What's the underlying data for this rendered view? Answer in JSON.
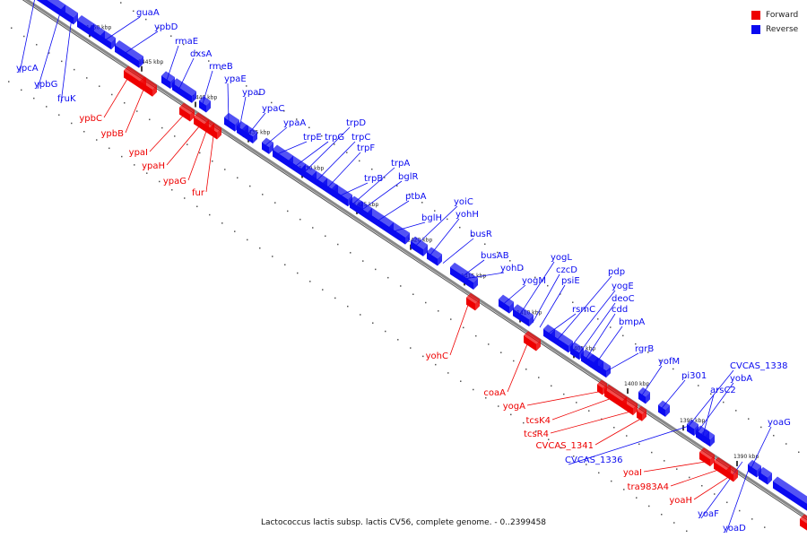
{
  "colors": {
    "forward": "#ee0000",
    "reverse": "#0a0af0",
    "axis": "#888888",
    "text": "#111111"
  },
  "legend": [
    {
      "label": "Forward",
      "color": "#ee0000"
    },
    {
      "label": "Reverse",
      "color": "#0a0af0"
    }
  ],
  "caption": "Lactococcus lactis subsp. lactis CV56, complete genome. - 0..2399458",
  "ruler": [
    "1450 kbp",
    "1445 kbp",
    "1440 kbp",
    "1435 kbp",
    "1430 kbp",
    "1425 kbp",
    "1420 kbp",
    "1415 kbp",
    "1410 kbp",
    "1405 kbp",
    "1400 kbp",
    "1395 kbp",
    "1390 kbp"
  ],
  "reverse_genes": [
    "guaA",
    "ypbD",
    "rmaE",
    "dxsA",
    "rmeB",
    "ypaE",
    "ypaD",
    "ypaC",
    "ypaA",
    "trpE",
    "trpG",
    "trpD",
    "trpC",
    "trpF",
    "trpB",
    "trpA",
    "bglR",
    "ptbA",
    "bglH",
    "yoiC",
    "yohH",
    "busR",
    "busAB",
    "yohD",
    "yogM",
    "yogL",
    "czcD",
    "psiE",
    "rsmC",
    "pdp",
    "yogE",
    "deoC",
    "cdd",
    "bmpA",
    "rgrB",
    "yofM",
    "pi301",
    "CVCAS_1338",
    "yobA",
    "arsC2",
    "yoaG",
    "CVCAS_1336",
    "yoaF",
    "yoaD",
    "ypcA",
    "ypbG",
    "fruK"
  ],
  "forward_genes": [
    "ypbC",
    "ypbB",
    "ypaI",
    "ypaH",
    "ypaG",
    "fur",
    "yohC",
    "coaA",
    "yogA",
    "tcsK4",
    "tcsR4",
    "CVCAS_1341",
    "yoaI",
    "tra983A4",
    "yoaH"
  ]
}
